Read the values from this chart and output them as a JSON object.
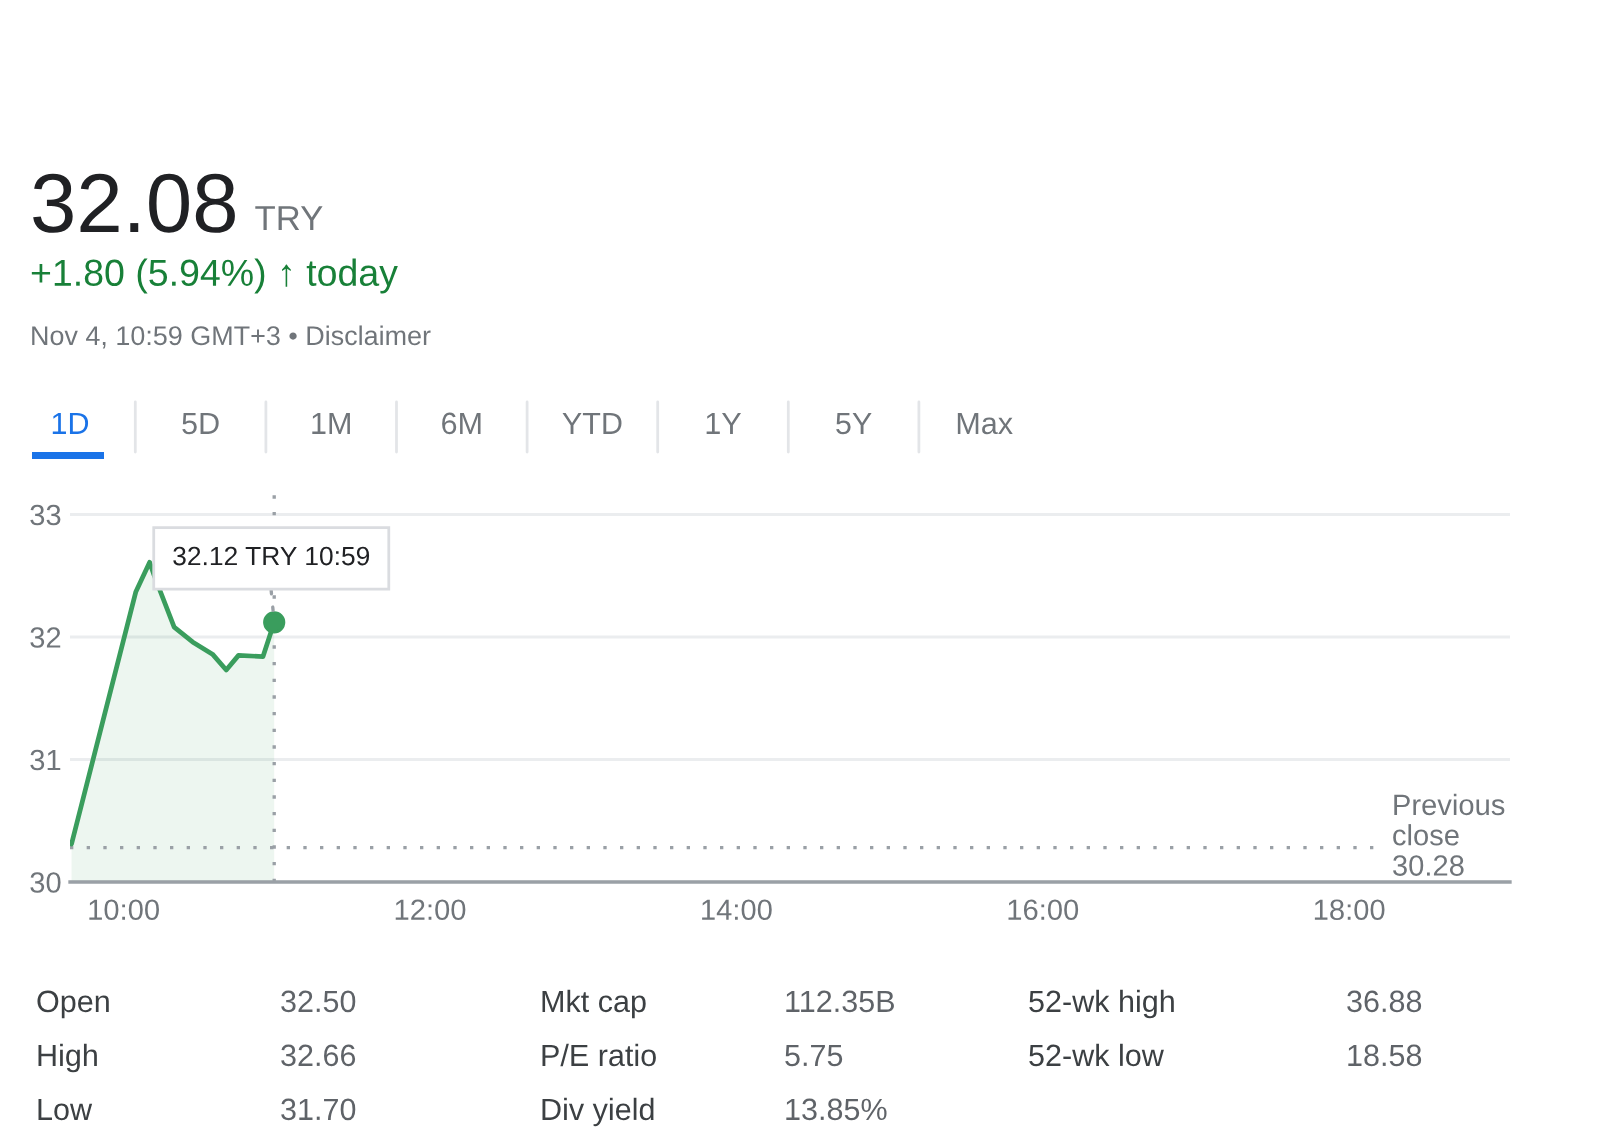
{
  "chart_data": [
    {
      "type": "other",
      "title": "32.08",
      "annotations": [
        "TRY",
        "+1.80 (5.94%) ↑ today",
        "Nov 4, 10:59 GMT+3 • Disclaimer",
        "1D",
        "5D",
        "1M",
        "6M",
        "YTD",
        "1Y",
        "5Y",
        "Max"
      ]
    },
    {
      "type": "area",
      "x": [
        9.66,
        10.08,
        10.17,
        10.2,
        10.33,
        10.45,
        10.58,
        10.67,
        10.75,
        10.91,
        10.983
      ],
      "series": [
        {
          "color": "#3a9d5d",
          "values": [
            30.31,
            32.37,
            32.61,
            32.5,
            32.08,
            31.96,
            31.86,
            31.73,
            31.85,
            31.84,
            32.12
          ]
        }
      ],
      "xlim": [
        9.65,
        19.05
      ],
      "xticks": [
        {
          "value": 10,
          "label": "10:00"
        },
        {
          "value": 12,
          "label": "12:00"
        },
        {
          "value": 14,
          "label": "14:00"
        },
        {
          "value": 16,
          "label": "16:00"
        },
        {
          "value": 18,
          "label": "18:00"
        }
      ],
      "ylim": [
        30,
        33.2
      ],
      "yticks": [
        30,
        31,
        32,
        33
      ],
      "grid": "y",
      "ref_lines": [
        {
          "axis": "x",
          "value": 10.983,
          "line_style": "dotted",
          "color": "#9aa0a6"
        },
        {
          "axis": "y",
          "value": 30.28,
          "label": "Previous close 30.28",
          "line_style": "dotted",
          "color": "#9aa0a6"
        }
      ],
      "annotations": [
        {
          "text": "32.12 TRY 10:59",
          "x": 10.983,
          "y": 32.12
        }
      ]
    },
    {
      "type": "other",
      "annotations": [
        "Open",
        "32.50",
        "High",
        "32.66",
        "Low",
        "31.70",
        "Mkt cap",
        "112.35B",
        "P/E ratio",
        "5.75",
        "Div yield",
        "13.85%",
        "52-wk high",
        "36.88",
        "52-wk low",
        "18.58"
      ]
    }
  ]
}
